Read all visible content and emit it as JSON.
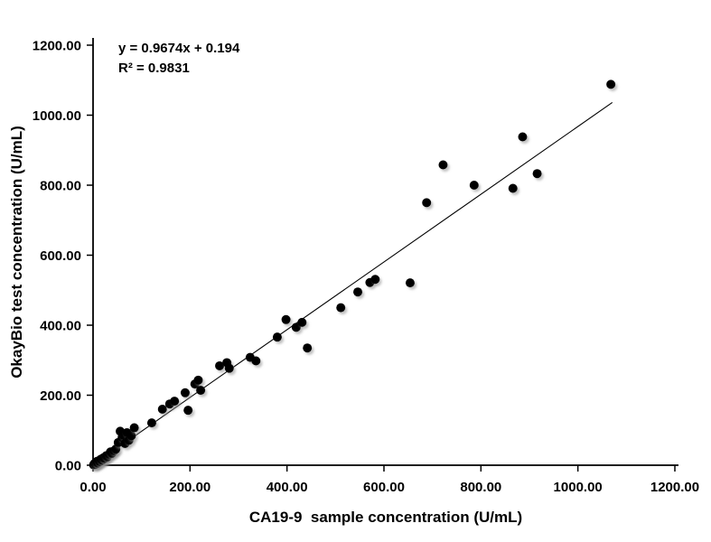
{
  "chart_data": {
    "type": "scatter",
    "title": "",
    "xlabel": "CA19-9  sample concentration (U/mL)",
    "ylabel": "OkayBio test concentration (U/mL)",
    "xlim": [
      0,
      1200
    ],
    "ylim": [
      0,
      1200
    ],
    "x_ticks": [
      0,
      200,
      400,
      600,
      800,
      1000,
      1200
    ],
    "y_ticks": [
      0,
      200,
      400,
      600,
      800,
      1000,
      1200
    ],
    "tick_decimals": 2,
    "grid": false,
    "legend": "none",
    "annotation": {
      "equation": "y = 0.9674x + 0.194",
      "r_squared": "R² = 0.9831"
    },
    "trendline": {
      "slope": 0.9674,
      "intercept": 0.194,
      "x_start": 3,
      "x_end": 1071,
      "color": "#000000"
    },
    "point_color": "#050505",
    "shadow_color": "#9a9a9a",
    "axis_color": "#000000",
    "points": [
      [
        1,
        1
      ],
      [
        3,
        5
      ],
      [
        5,
        2
      ],
      [
        6,
        8
      ],
      [
        8,
        11
      ],
      [
        10,
        6
      ],
      [
        12,
        13
      ],
      [
        14,
        10
      ],
      [
        16,
        17
      ],
      [
        19,
        14
      ],
      [
        21,
        21
      ],
      [
        24,
        19
      ],
      [
        27,
        27
      ],
      [
        30,
        24
      ],
      [
        33,
        31
      ],
      [
        36,
        38
      ],
      [
        39,
        34
      ],
      [
        43,
        41
      ],
      [
        47,
        46
      ],
      [
        52,
        65
      ],
      [
        56,
        97
      ],
      [
        60,
        79
      ],
      [
        63,
        85
      ],
      [
        66,
        62
      ],
      [
        70,
        93
      ],
      [
        74,
        71
      ],
      [
        79,
        84
      ],
      [
        85,
        107
      ],
      [
        121,
        121
      ],
      [
        143,
        160
      ],
      [
        158,
        175
      ],
      [
        168,
        183
      ],
      [
        190,
        207
      ],
      [
        196,
        157
      ],
      [
        210,
        232
      ],
      [
        217,
        243
      ],
      [
        222,
        214
      ],
      [
        261,
        284
      ],
      [
        276,
        293
      ],
      [
        281,
        277
      ],
      [
        324,
        308
      ],
      [
        336,
        298
      ],
      [
        380,
        366
      ],
      [
        398,
        416
      ],
      [
        419,
        394
      ],
      [
        431,
        408
      ],
      [
        442,
        335
      ],
      [
        511,
        450
      ],
      [
        546,
        495
      ],
      [
        571,
        522
      ],
      [
        582,
        531
      ],
      [
        654,
        521
      ],
      [
        688,
        750
      ],
      [
        722,
        858
      ],
      [
        786,
        800
      ],
      [
        866,
        791
      ],
      [
        886,
        938
      ],
      [
        916,
        833
      ],
      [
        1068,
        1088
      ]
    ]
  }
}
